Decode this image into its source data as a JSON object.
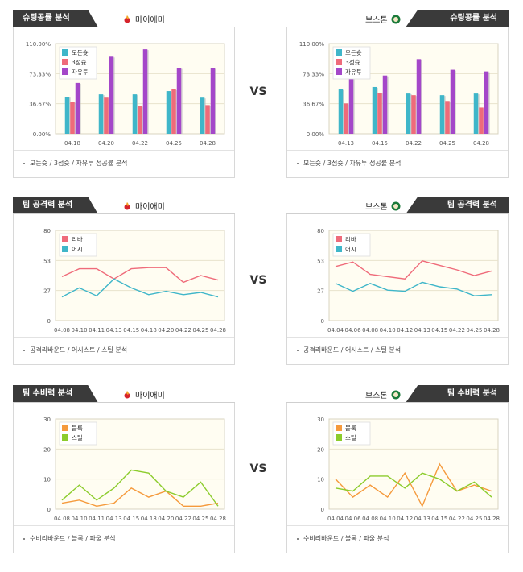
{
  "vs_label": "VS",
  "panels": [
    {
      "id": "shoot-left",
      "side": "left",
      "row": 0,
      "header": "슈팅공률 분석",
      "team": "마이애미",
      "logo": "heat-logo-icon",
      "caption": "모든슛 / 3점슛 / 자유투 성공률 분석",
      "chart": {
        "type": "bar",
        "yticks": [
          "110.00%",
          "73.33%",
          "36.67%",
          "0.00%"
        ],
        "ylim": [
          0,
          110
        ],
        "categories": [
          "04.18",
          "04.20",
          "04.22",
          "04.25",
          "04.28"
        ],
        "series": [
          {
            "name": "모든슛",
            "color": "#3fb6c9",
            "values": [
              45,
              48,
              48,
              52,
              44
            ]
          },
          {
            "name": "3점슛",
            "color": "#ef6b7a",
            "values": [
              39,
              44,
              34,
              54,
              35
            ]
          },
          {
            "name": "자유투",
            "color": "#a447c9",
            "values": [
              62,
              94,
              103,
              80,
              80
            ]
          }
        ]
      }
    },
    {
      "id": "shoot-right",
      "side": "right",
      "row": 0,
      "header": "슈팅공률 분석",
      "team": "보스톤",
      "logo": "celtics-logo-icon",
      "caption": "모든슛 / 3점슛 / 자유투 성공률 분석",
      "chart": {
        "type": "bar",
        "yticks": [
          "110.00%",
          "73.33%",
          "36.67%",
          "0.00%"
        ],
        "ylim": [
          0,
          110
        ],
        "categories": [
          "04.13",
          "04.15",
          "04.22",
          "04.25",
          "04.28"
        ],
        "series": [
          {
            "name": "모든슛",
            "color": "#3fb6c9",
            "values": [
              54,
              57,
              49,
              47,
              49
            ]
          },
          {
            "name": "3점슛",
            "color": "#ef6b7a",
            "values": [
              37,
              50,
              47,
              40,
              32
            ]
          },
          {
            "name": "자유투",
            "color": "#a447c9",
            "values": [
              68,
              71,
              91,
              78,
              76
            ]
          }
        ]
      }
    },
    {
      "id": "attack-left",
      "side": "left",
      "row": 1,
      "header": "팀 공격력 분석",
      "team": "마이애미",
      "logo": "heat-logo-icon",
      "caption": "공격리바운드 / 어시스트 / 스틸 분석",
      "chart": {
        "type": "line",
        "yticks": [
          "80",
          "53",
          "27",
          "0"
        ],
        "ylim": [
          0,
          80
        ],
        "categories": [
          "04.08",
          "04.10",
          "04.11",
          "04.13",
          "04.15",
          "04.18",
          "04.20",
          "04.22",
          "04.25",
          "04.28"
        ],
        "series": [
          {
            "name": "리바",
            "color": "#ef6b7a",
            "values": [
              39,
              46,
              46,
              37,
              46,
              47,
              47,
              34,
              40,
              36
            ]
          },
          {
            "name": "어시",
            "color": "#3fb6c9",
            "values": [
              21,
              29,
              22,
              37,
              29,
              23,
              26,
              23,
              25,
              21
            ]
          }
        ]
      }
    },
    {
      "id": "attack-right",
      "side": "right",
      "row": 1,
      "header": "팀 공격력 분석",
      "team": "보스톤",
      "logo": "celtics-logo-icon",
      "caption": "공격리바운드 / 어시스트 / 스틸 분석",
      "chart": {
        "type": "line",
        "yticks": [
          "80",
          "53",
          "27",
          "0"
        ],
        "ylim": [
          0,
          80
        ],
        "categories": [
          "04.04",
          "04.06",
          "04.08",
          "04.10",
          "04.12",
          "04.13",
          "04.15",
          "04.22",
          "04.25",
          "04.28"
        ],
        "series": [
          {
            "name": "리바",
            "color": "#ef6b7a",
            "values": [
              48,
              52,
              41,
              39,
              37,
              53,
              49,
              45,
              40,
              44
            ]
          },
          {
            "name": "어시",
            "color": "#3fb6c9",
            "values": [
              33,
              26,
              33,
              27,
              26,
              34,
              30,
              28,
              22,
              23
            ]
          }
        ]
      }
    },
    {
      "id": "defense-left",
      "side": "left",
      "row": 2,
      "header": "팀 수비력 분석",
      "team": "마이애미",
      "logo": "heat-logo-icon",
      "caption": "수비리바운드 / 블록 / 파울 분석",
      "chart": {
        "type": "line",
        "yticks": [
          "30",
          "20",
          "10",
          "0"
        ],
        "ylim": [
          0,
          30
        ],
        "categories": [
          "04.08",
          "04.10",
          "04.11",
          "04.13",
          "04.15",
          "04.18",
          "04.20",
          "04.22",
          "04.25",
          "04.28"
        ],
        "series": [
          {
            "name": "블록",
            "color": "#f59a3c",
            "values": [
              2,
              3,
              1,
              2,
              7,
              4,
              6,
              1,
              1,
              2
            ]
          },
          {
            "name": "스틸",
            "color": "#8ccc2c",
            "values": [
              3,
              8,
              3,
              7,
              13,
              12,
              6,
              4,
              9,
              1
            ]
          }
        ]
      }
    },
    {
      "id": "defense-right",
      "side": "right",
      "row": 2,
      "header": "팀 수비력 분석",
      "team": "보스톤",
      "logo": "celtics-logo-icon",
      "caption": "수비리바운드 / 블록 / 파울 분석",
      "chart": {
        "type": "line",
        "yticks": [
          "30",
          "20",
          "10",
          "0"
        ],
        "ylim": [
          0,
          30
        ],
        "categories": [
          "04.04",
          "04.06",
          "04.08",
          "04.10",
          "04.12",
          "04.13",
          "04.15",
          "04.22",
          "04.25",
          "04.28"
        ],
        "series": [
          {
            "name": "블록",
            "color": "#f59a3c",
            "values": [
              10,
              4,
              8,
              4,
              12,
              1,
              15,
              6,
              8,
              6
            ]
          },
          {
            "name": "스틸",
            "color": "#8ccc2c",
            "values": [
              7,
              6,
              11,
              11,
              7,
              12,
              10,
              6,
              9,
              4
            ]
          }
        ]
      }
    }
  ],
  "chart_data": [
    {
      "type": "bar",
      "categories": [
        "04.18",
        "04.20",
        "04.22",
        "04.25",
        "04.28"
      ],
      "ylim": [
        0,
        110
      ],
      "series": [
        {
          "name": "모든슛",
          "values": [
            45,
            48,
            48,
            52,
            44
          ]
        },
        {
          "name": "3점슛",
          "values": [
            39,
            44,
            34,
            54,
            35
          ]
        },
        {
          "name": "자유투",
          "values": [
            62,
            94,
            103,
            80,
            80
          ]
        }
      ]
    },
    {
      "type": "bar",
      "categories": [
        "04.13",
        "04.15",
        "04.22",
        "04.25",
        "04.28"
      ],
      "ylim": [
        0,
        110
      ],
      "series": [
        {
          "name": "모든슛",
          "values": [
            54,
            57,
            49,
            47,
            49
          ]
        },
        {
          "name": "3점슛",
          "values": [
            37,
            50,
            47,
            40,
            32
          ]
        },
        {
          "name": "자유투",
          "values": [
            68,
            71,
            91,
            78,
            76
          ]
        }
      ]
    },
    {
      "type": "line",
      "categories": [
        "04.08",
        "04.10",
        "04.11",
        "04.13",
        "04.15",
        "04.18",
        "04.20",
        "04.22",
        "04.25",
        "04.28"
      ],
      "ylim": [
        0,
        80
      ],
      "series": [
        {
          "name": "리바",
          "values": [
            39,
            46,
            46,
            37,
            46,
            47,
            47,
            34,
            40,
            36
          ]
        },
        {
          "name": "어시",
          "values": [
            21,
            29,
            22,
            37,
            29,
            23,
            26,
            23,
            25,
            21
          ]
        }
      ]
    },
    {
      "type": "line",
      "categories": [
        "04.04",
        "04.06",
        "04.08",
        "04.10",
        "04.12",
        "04.13",
        "04.15",
        "04.22",
        "04.25",
        "04.28"
      ],
      "ylim": [
        0,
        80
      ],
      "series": [
        {
          "name": "리바",
          "values": [
            48,
            52,
            41,
            39,
            37,
            53,
            49,
            45,
            40,
            44
          ]
        },
        {
          "name": "어시",
          "values": [
            33,
            26,
            33,
            27,
            26,
            34,
            30,
            28,
            22,
            23
          ]
        }
      ]
    },
    {
      "type": "line",
      "categories": [
        "04.08",
        "04.10",
        "04.11",
        "04.13",
        "04.15",
        "04.18",
        "04.20",
        "04.22",
        "04.25",
        "04.28"
      ],
      "ylim": [
        0,
        30
      ],
      "series": [
        {
          "name": "블록",
          "values": [
            2,
            3,
            1,
            2,
            7,
            4,
            6,
            1,
            1,
            2
          ]
        },
        {
          "name": "스틸",
          "values": [
            3,
            8,
            3,
            7,
            13,
            12,
            6,
            4,
            9,
            1
          ]
        }
      ]
    },
    {
      "type": "line",
      "categories": [
        "04.04",
        "04.06",
        "04.08",
        "04.10",
        "04.12",
        "04.13",
        "04.15",
        "04.22",
        "04.25",
        "04.28"
      ],
      "ylim": [
        0,
        30
      ],
      "series": [
        {
          "name": "블록",
          "values": [
            10,
            4,
            8,
            4,
            12,
            1,
            15,
            6,
            8,
            6
          ]
        },
        {
          "name": "스틸",
          "values": [
            7,
            6,
            11,
            11,
            7,
            12,
            10,
            6,
            9,
            4
          ]
        }
      ]
    }
  ]
}
